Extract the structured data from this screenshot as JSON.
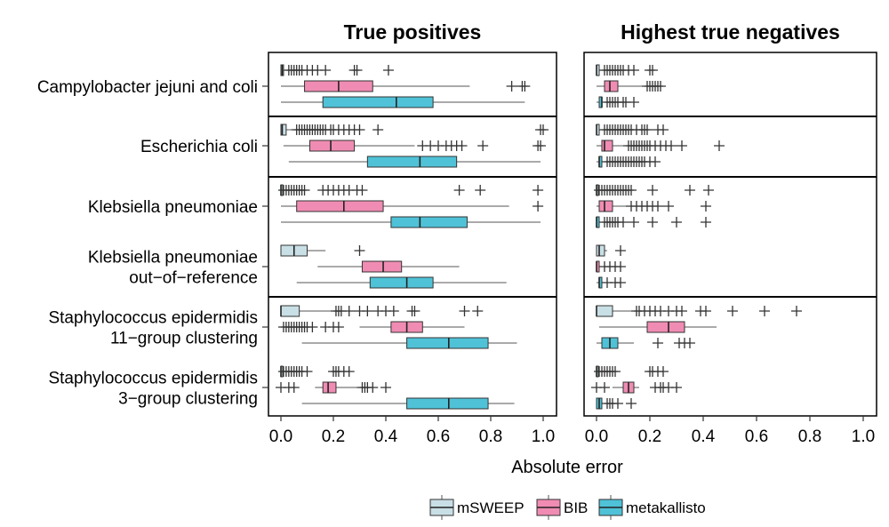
{
  "chart_data": {
    "type": "boxplot",
    "xlabel": "Absolute error",
    "xlim": [
      0,
      1
    ],
    "xticks": [
      "0.0",
      "0.2",
      "0.4",
      "0.6",
      "0.8",
      "1.0"
    ],
    "xtick_values": [
      0,
      0.2,
      0.4,
      0.6,
      0.8,
      1.0
    ],
    "legend_position": "bottom",
    "methods": [
      {
        "name": "mSWEEP",
        "color": "#c9dfe6"
      },
      {
        "name": "BIB",
        "color": "#f08cb3"
      },
      {
        "name": "metakallisto",
        "color": "#4fc2d7"
      }
    ],
    "row_labels": [
      [
        "Campylobacter jejuni and coli"
      ],
      [
        "Escherichia coli"
      ],
      [
        "Klebsiella pneumoniae"
      ],
      [
        "Klebsiella pneumoniae",
        "out−of−reference"
      ],
      [
        "Staphylococcus epidermidis",
        "11−group clustering"
      ],
      [
        "Staphylococcus epidermidis",
        "3−group clustering"
      ]
    ],
    "panels": [
      {
        "title": "True positives",
        "rows": [
          {
            "boxes": [
              {
                "wlo": 0,
                "q1": 0,
                "med": 0.005,
                "q3": 0.01,
                "whi": 0.02,
                "outliers": [
                  0.03,
                  0.04,
                  0.05,
                  0.06,
                  0.07,
                  0.08,
                  0.1,
                  0.12,
                  0.14,
                  0.17,
                  0.28,
                  0.29,
                  0.41
                ]
              },
              {
                "wlo": 0,
                "q1": 0.09,
                "med": 0.22,
                "q3": 0.35,
                "whi": 0.72,
                "outliers": [
                  0.88,
                  0.92,
                  0.93
                ]
              },
              {
                "wlo": 0,
                "q1": 0.16,
                "med": 0.44,
                "q3": 0.58,
                "whi": 0.93,
                "outliers": []
              }
            ]
          },
          {
            "boxes": [
              {
                "wlo": 0,
                "q1": 0,
                "med": 0.005,
                "q3": 0.02,
                "whi": 0.05,
                "outliers": [
                  0.06,
                  0.07,
                  0.08,
                  0.09,
                  0.1,
                  0.11,
                  0.12,
                  0.13,
                  0.14,
                  0.15,
                  0.16,
                  0.17,
                  0.19,
                  0.2,
                  0.22,
                  0.24,
                  0.26,
                  0.28,
                  0.3,
                  0.37,
                  0.99,
                  1.0
                ]
              },
              {
                "wlo": 0.01,
                "q1": 0.11,
                "med": 0.19,
                "q3": 0.28,
                "whi": 0.51,
                "outliers": [
                  0.54,
                  0.57,
                  0.6,
                  0.63,
                  0.65,
                  0.67,
                  0.69,
                  0.77,
                  0.98,
                  0.99
                ]
              },
              {
                "wlo": 0.03,
                "q1": 0.33,
                "med": 0.53,
                "q3": 0.67,
                "whi": 0.99,
                "outliers": []
              }
            ]
          },
          {
            "boxes": [
              {
                "wlo": 0,
                "q1": 0,
                "med": 0,
                "q3": 0,
                "whi": 0,
                "outliers": [
                  0.01,
                  0.02,
                  0.03,
                  0.04,
                  0.05,
                  0.06,
                  0.07,
                  0.08,
                  0.09,
                  0.16,
                  0.18,
                  0.2,
                  0.22,
                  0.24,
                  0.26,
                  0.29,
                  0.31,
                  0.68,
                  0.76,
                  0.98
                ]
              },
              {
                "wlo": 0,
                "q1": 0.06,
                "med": 0.24,
                "q3": 0.39,
                "whi": 0.87,
                "outliers": [
                  0.98
                ]
              },
              {
                "wlo": 0,
                "q1": 0.42,
                "med": 0.53,
                "q3": 0.71,
                "whi": 0.99,
                "outliers": []
              }
            ]
          },
          {
            "boxes": [
              {
                "wlo": 0,
                "q1": 0,
                "med": 0.05,
                "q3": 0.1,
                "whi": 0.17,
                "outliers": [
                  0.3
                ]
              },
              {
                "wlo": 0.14,
                "q1": 0.31,
                "med": 0.39,
                "q3": 0.46,
                "whi": 0.68,
                "outliers": []
              },
              {
                "wlo": 0.06,
                "q1": 0.34,
                "med": 0.48,
                "q3": 0.58,
                "whi": 0.86,
                "outliers": []
              }
            ]
          },
          {
            "boxes": [
              {
                "wlo": 0,
                "q1": 0,
                "med": 0,
                "q3": 0.07,
                "whi": 0.2,
                "outliers": [
                  0.21,
                  0.22,
                  0.23,
                  0.26,
                  0.3,
                  0.33,
                  0.37,
                  0.4,
                  0.43,
                  0.5,
                  0.51,
                  0.7,
                  0.75
                ]
              },
              {
                "wlo": 0.3,
                "q1": 0.42,
                "med": 0.48,
                "q3": 0.54,
                "whi": 0.7,
                "outliers": [
                  0.01,
                  0.02,
                  0.03,
                  0.04,
                  0.05,
                  0.06,
                  0.07,
                  0.08,
                  0.09,
                  0.1,
                  0.12,
                  0.17,
                  0.2,
                  0.22
                ]
              },
              {
                "wlo": 0.08,
                "q1": 0.48,
                "med": 0.64,
                "q3": 0.79,
                "whi": 0.9,
                "outliers": []
              }
            ]
          },
          {
            "boxes": [
              {
                "wlo": 0,
                "q1": 0,
                "med": 0,
                "q3": 0,
                "whi": 0,
                "outliers": [
                  0.01,
                  0.02,
                  0.03,
                  0.04,
                  0.05,
                  0.06,
                  0.07,
                  0.08,
                  0.1,
                  0.2,
                  0.21,
                  0.22,
                  0.24,
                  0.26
                ]
              },
              {
                "wlo": 0.13,
                "q1": 0.16,
                "med": 0.18,
                "q3": 0.21,
                "whi": 0.29,
                "outliers": [
                  0.0,
                  0.03,
                  0.05,
                  0.31,
                  0.32,
                  0.33,
                  0.35,
                  0.4
                ]
              },
              {
                "wlo": 0.08,
                "q1": 0.48,
                "med": 0.64,
                "q3": 0.79,
                "whi": 0.89,
                "outliers": []
              }
            ]
          }
        ]
      },
      {
        "title": "Highest true negatives",
        "rows": [
          {
            "boxes": [
              {
                "wlo": 0,
                "q1": 0,
                "med": 0,
                "q3": 0.01,
                "whi": 0.02,
                "outliers": [
                  0.03,
                  0.04,
                  0.05,
                  0.06,
                  0.07,
                  0.08,
                  0.09,
                  0.1,
                  0.12,
                  0.14,
                  0.2,
                  0.21
                ]
              },
              {
                "wlo": 0,
                "q1": 0.03,
                "med": 0.05,
                "q3": 0.08,
                "whi": 0.18,
                "outliers": [
                  0.19,
                  0.2,
                  0.21,
                  0.22,
                  0.23,
                  0.24
                ]
              },
              {
                "wlo": 0,
                "q1": 0.01,
                "med": 0.02,
                "q3": 0.02,
                "whi": 0.03,
                "outliers": [
                  0.04,
                  0.05,
                  0.06,
                  0.07,
                  0.08,
                  0.1,
                  0.11,
                  0.14
                ]
              }
            ]
          },
          {
            "boxes": [
              {
                "wlo": 0,
                "q1": 0,
                "med": 0,
                "q3": 0.01,
                "whi": 0.02,
                "outliers": [
                  0.03,
                  0.04,
                  0.05,
                  0.06,
                  0.07,
                  0.08,
                  0.09,
                  0.1,
                  0.11,
                  0.12,
                  0.13,
                  0.15,
                  0.17,
                  0.18,
                  0.19,
                  0.23,
                  0.25
                ]
              },
              {
                "wlo": 0,
                "q1": 0.02,
                "med": 0.03,
                "q3": 0.06,
                "whi": 0.1,
                "outliers": [
                  0.12,
                  0.13,
                  0.14,
                  0.15,
                  0.16,
                  0.17,
                  0.18,
                  0.19,
                  0.2,
                  0.22,
                  0.24,
                  0.26,
                  0.28,
                  0.32,
                  0.46
                ]
              },
              {
                "wlo": 0,
                "q1": 0.01,
                "med": 0.01,
                "q3": 0.02,
                "whi": 0.03,
                "outliers": [
                  0.04,
                  0.05,
                  0.06,
                  0.07,
                  0.08,
                  0.09,
                  0.1,
                  0.11,
                  0.12,
                  0.13,
                  0.14,
                  0.15,
                  0.16,
                  0.17,
                  0.18,
                  0.2,
                  0.22
                ]
              }
            ]
          },
          {
            "boxes": [
              {
                "wlo": 0,
                "q1": 0,
                "med": 0,
                "q3": 0,
                "whi": 0,
                "outliers": [
                  0.01,
                  0.02,
                  0.03,
                  0.04,
                  0.05,
                  0.06,
                  0.07,
                  0.08,
                  0.09,
                  0.1,
                  0.11,
                  0.12,
                  0.13,
                  0.21,
                  0.35,
                  0.42
                ]
              },
              {
                "wlo": 0,
                "q1": 0.01,
                "med": 0.03,
                "q3": 0.06,
                "whi": 0.12,
                "outliers": [
                  0.13,
                  0.15,
                  0.17,
                  0.19,
                  0.21,
                  0.23,
                  0.27,
                  0.41
                ]
              },
              {
                "wlo": 0,
                "q1": 0,
                "med": 0,
                "q3": 0.01,
                "whi": 0.02,
                "outliers": [
                  0.03,
                  0.04,
                  0.05,
                  0.06,
                  0.07,
                  0.08,
                  0.1,
                  0.14,
                  0.21,
                  0.3,
                  0.41
                ]
              }
            ]
          },
          {
            "boxes": [
              {
                "wlo": 0,
                "q1": 0,
                "med": 0.01,
                "q3": 0.03,
                "whi": 0.04,
                "outliers": [
                  0.09
                ]
              },
              {
                "wlo": 0,
                "q1": 0,
                "med": 0,
                "q3": 0.01,
                "whi": 0.02,
                "outliers": [
                  0.03,
                  0.05,
                  0.07,
                  0.09
                ]
              },
              {
                "wlo": 0,
                "q1": 0.01,
                "med": 0.01,
                "q3": 0.02,
                "whi": 0.03,
                "outliers": [
                  0.04,
                  0.07,
                  0.09
                ]
              }
            ]
          },
          {
            "boxes": [
              {
                "wlo": 0,
                "q1": 0,
                "med": 0,
                "q3": 0.06,
                "whi": 0.14,
                "outliers": [
                  0.15,
                  0.16,
                  0.18,
                  0.2,
                  0.22,
                  0.24,
                  0.27,
                  0.3,
                  0.32,
                  0.39,
                  0.41,
                  0.51,
                  0.63,
                  0.75
                ]
              },
              {
                "wlo": 0.01,
                "q1": 0.19,
                "med": 0.27,
                "q3": 0.33,
                "whi": 0.45,
                "outliers": []
              },
              {
                "wlo": 0,
                "q1": 0.02,
                "med": 0.05,
                "q3": 0.08,
                "whi": 0.14,
                "outliers": [
                  0.23,
                  0.31,
                  0.33,
                  0.35
                ]
              }
            ]
          },
          {
            "boxes": [
              {
                "wlo": 0,
                "q1": 0,
                "med": 0,
                "q3": 0,
                "whi": 0,
                "outliers": [
                  0.01,
                  0.02,
                  0.03,
                  0.04,
                  0.05,
                  0.06,
                  0.07,
                  0.2,
                  0.21,
                  0.23,
                  0.25
                ]
              },
              {
                "wlo": 0.06,
                "q1": 0.1,
                "med": 0.12,
                "q3": 0.14,
                "whi": 0.16,
                "outliers": [
                  0.0,
                  0.03,
                  0.22,
                  0.24,
                  0.25,
                  0.27,
                  0.3
                ]
              },
              {
                "wlo": 0,
                "q1": 0,
                "med": 0.01,
                "q3": 0.02,
                "whi": 0.03,
                "outliers": [
                  0.04,
                  0.05,
                  0.06,
                  0.08,
                  0.13
                ]
              }
            ]
          }
        ]
      }
    ]
  }
}
